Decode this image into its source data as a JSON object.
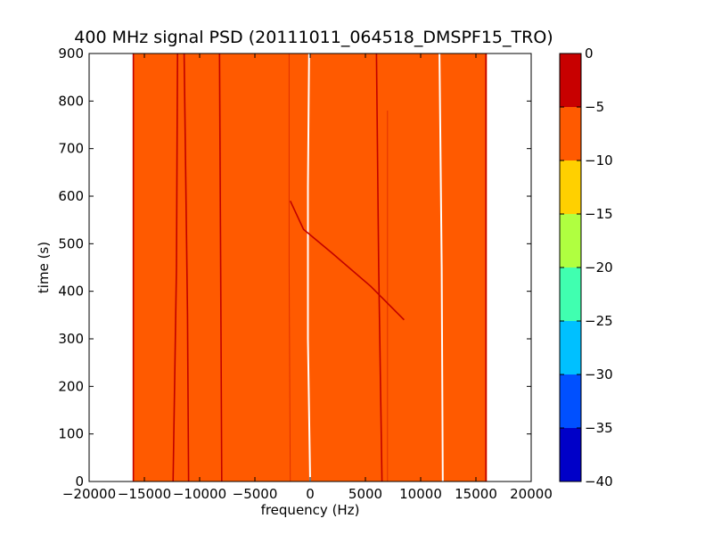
{
  "chart_data": {
    "type": "heatmap",
    "title": "400 MHz signal PSD (20111011_064518_DMSPF15_TRO)",
    "xlabel": "frequency (Hz)",
    "ylabel": "time (s)",
    "xlim": [
      -20000,
      20000
    ],
    "ylim": [
      0,
      900
    ],
    "x_ticks": [
      -20000,
      -15000,
      -10000,
      -5000,
      0,
      5000,
      10000,
      15000,
      20000
    ],
    "x_tick_labels": [
      "−20000",
      "−15000",
      "−10000",
      "−5000",
      "0",
      "5000",
      "10000",
      "15000",
      "20000"
    ],
    "y_ticks": [
      0,
      100,
      200,
      300,
      400,
      500,
      600,
      700,
      800,
      900
    ],
    "y_tick_labels": [
      "0",
      "100",
      "200",
      "300",
      "400",
      "500",
      "600",
      "700",
      "800",
      "900"
    ],
    "data_extent_hz": [
      -16000,
      16000
    ],
    "background_level_db": -7.5,
    "colorbar": {
      "range": [
        -40,
        0
      ],
      "ticks": [
        0,
        -5,
        -10,
        -15,
        -20,
        -25,
        -30,
        -35,
        -40
      ],
      "tick_labels": [
        "0",
        "−5",
        "−10",
        "−15",
        "−20",
        "−25",
        "−30",
        "−35",
        "−40"
      ],
      "bands": [
        {
          "from": -40,
          "to": -35,
          "color": "#0000c8"
        },
        {
          "from": -35,
          "to": -30,
          "color": "#0050ff"
        },
        {
          "from": -30,
          "to": -25,
          "color": "#00c0ff"
        },
        {
          "from": -25,
          "to": -20,
          "color": "#40ffb0"
        },
        {
          "from": -20,
          "to": -15,
          "color": "#b0ff40"
        },
        {
          "from": -15,
          "to": -10,
          "color": "#ffd000"
        },
        {
          "from": -10,
          "to": -5,
          "color": "#ff5a00"
        },
        {
          "from": -5,
          "to": 0,
          "color": "#c80000"
        }
      ]
    },
    "traces": [
      {
        "kind": "strong",
        "points": [
          [
            -16000,
            0
          ],
          [
            -16000,
            900
          ]
        ]
      },
      {
        "kind": "strong",
        "points": [
          [
            -12400,
            0
          ],
          [
            -12100,
            450
          ],
          [
            -12000,
            900
          ]
        ]
      },
      {
        "kind": "strong",
        "points": [
          [
            -11000,
            0
          ],
          [
            -11100,
            350
          ],
          [
            -11400,
            900
          ]
        ]
      },
      {
        "kind": "strong",
        "points": [
          [
            -8000,
            0
          ],
          [
            -8100,
            450
          ],
          [
            -8200,
            900
          ]
        ]
      },
      {
        "kind": "weak",
        "points": [
          [
            -1800,
            0
          ],
          [
            -1900,
            450
          ],
          [
            -1900,
            900
          ]
        ]
      },
      {
        "kind": "white",
        "points": [
          [
            0,
            0
          ],
          [
            -200,
            300
          ],
          [
            -200,
            620
          ],
          [
            -100,
            900
          ]
        ]
      },
      {
        "kind": "strong",
        "points": [
          [
            6500,
            0
          ],
          [
            6200,
            450
          ],
          [
            6000,
            900
          ]
        ]
      },
      {
        "kind": "weak",
        "points": [
          [
            7000,
            0
          ],
          [
            7000,
            780
          ]
        ]
      },
      {
        "kind": "white",
        "points": [
          [
            12000,
            0
          ],
          [
            11900,
            450
          ],
          [
            11700,
            900
          ]
        ]
      },
      {
        "kind": "strong",
        "points": [
          [
            15900,
            0
          ],
          [
            15900,
            900
          ]
        ]
      },
      {
        "kind": "strong",
        "points": [
          [
            -1800,
            590
          ],
          [
            -600,
            530
          ],
          [
            2000,
            480
          ],
          [
            5500,
            410
          ],
          [
            8500,
            340
          ]
        ]
      }
    ]
  }
}
